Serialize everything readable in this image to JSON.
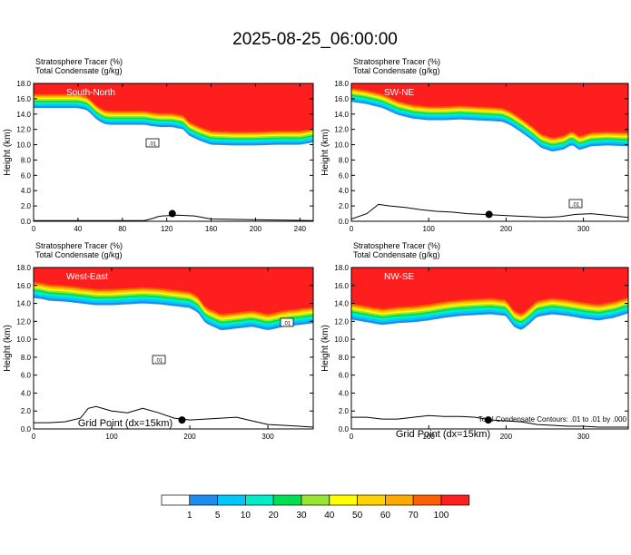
{
  "title": "2025-08-25_06:00:00",
  "panel_labels": [
    "Stratosphere Tracer   (%)",
    "Total Condensate   (g/kg)"
  ],
  "xlabel": "Grid Point (dx=15km)",
  "ylabel": "Height (km)",
  "footnote": "Total Condensate Contours: .01 to .01 by .000",
  "contour_label": ".01",
  "colors": {
    "levels": [
      {
        "label": "",
        "color": "#ffffff"
      },
      {
        "label": "1",
        "color": "#1e8cf0"
      },
      {
        "label": "5",
        "color": "#00c8ff"
      },
      {
        "label": "10",
        "color": "#00eec8"
      },
      {
        "label": "20",
        "color": "#00e050"
      },
      {
        "label": "30",
        "color": "#96e632"
      },
      {
        "label": "40",
        "color": "#ffff00"
      },
      {
        "label": "50",
        "color": "#ffd200"
      },
      {
        "label": "60",
        "color": "#ffaa00"
      },
      {
        "label": "70",
        "color": "#ff5f00"
      },
      {
        "label": "100",
        "color": "#ff1e1e"
      }
    ]
  },
  "chart_data": [
    {
      "type": "heatmap",
      "name": "South-North",
      "xlim": [
        0,
        252
      ],
      "ylim": [
        0,
        18
      ],
      "xticks": [
        0,
        40,
        80,
        120,
        160,
        200,
        240
      ],
      "yticks": [
        0,
        2,
        4,
        6,
        8,
        10,
        12,
        14,
        16,
        18
      ],
      "tropopause_x": [
        0,
        20,
        40,
        48,
        52,
        56,
        60,
        64,
        70,
        80,
        90,
        100,
        108,
        115,
        125,
        135,
        140,
        150,
        160,
        180,
        200,
        220,
        240,
        252
      ],
      "tropopause_y": [
        14.8,
        14.8,
        14.8,
        14.5,
        14.0,
        13.4,
        13.0,
        12.7,
        12.6,
        12.6,
        12.6,
        12.6,
        12.4,
        12.3,
        12.3,
        12.0,
        11.2,
        10.5,
        10.0,
        9.9,
        9.9,
        10.0,
        10.0,
        10.3
      ],
      "terrain_x": [
        0,
        100,
        108,
        112,
        116,
        130,
        145,
        160,
        252
      ],
      "terrain_y": [
        0.1,
        0.1,
        0.4,
        0.6,
        0.7,
        0.8,
        0.7,
        0.3,
        0.1
      ],
      "marker": [
        125,
        1.0
      ]
    },
    {
      "type": "heatmap",
      "name": "SW-NE",
      "xlim": [
        0,
        358
      ],
      "ylim": [
        0,
        18
      ],
      "xticks": [
        0,
        100,
        200,
        300
      ],
      "yticks": [
        0,
        2,
        4,
        6,
        8,
        10,
        12,
        14,
        16,
        18
      ],
      "tropopause_x": [
        0,
        20,
        40,
        60,
        80,
        100,
        120,
        140,
        160,
        180,
        195,
        205,
        220,
        235,
        245,
        260,
        275,
        285,
        295,
        310,
        330,
        358
      ],
      "tropopause_y": [
        15.6,
        15.3,
        14.8,
        13.9,
        13.4,
        13.2,
        13.2,
        13.3,
        13.2,
        13.1,
        13.0,
        12.6,
        11.6,
        10.5,
        9.6,
        9.1,
        9.4,
        10.0,
        9.3,
        9.8,
        9.9,
        9.8
      ],
      "terrain_x": [
        0,
        20,
        35,
        50,
        70,
        90,
        110,
        130,
        150,
        170,
        190,
        210,
        230,
        250,
        270,
        290,
        310,
        330,
        358
      ],
      "terrain_y": [
        0.3,
        1.0,
        2.2,
        2.0,
        1.8,
        1.5,
        1.3,
        1.2,
        1.0,
        0.9,
        0.8,
        0.7,
        0.6,
        0.5,
        0.6,
        0.9,
        1.0,
        0.8,
        0.5
      ],
      "marker": [
        178,
        0.9
      ]
    },
    {
      "type": "heatmap",
      "name": "West-East",
      "xlim": [
        0,
        358
      ],
      "ylim": [
        0,
        18
      ],
      "xticks": [
        0,
        100,
        200,
        300
      ],
      "yticks": [
        0,
        2,
        4,
        6,
        8,
        10,
        12,
        14,
        16,
        18
      ],
      "tropopause_x": [
        0,
        10,
        20,
        40,
        60,
        80,
        100,
        120,
        140,
        160,
        180,
        200,
        210,
        220,
        240,
        260,
        280,
        300,
        320,
        340,
        358
      ],
      "tropopause_y": [
        14.6,
        14.5,
        14.3,
        14.2,
        14.0,
        13.8,
        13.8,
        13.9,
        14.0,
        13.9,
        13.7,
        13.5,
        13.0,
        11.8,
        11.0,
        11.2,
        11.4,
        11.0,
        11.4,
        11.6,
        11.8
      ],
      "terrain_x": [
        0,
        20,
        40,
        60,
        70,
        80,
        100,
        120,
        140,
        160,
        180,
        200,
        220,
        240,
        260,
        280,
        300,
        320,
        340,
        358
      ],
      "terrain_y": [
        0.7,
        0.7,
        0.8,
        1.2,
        2.3,
        2.5,
        2.0,
        1.8,
        2.3,
        1.8,
        1.2,
        1.0,
        1.1,
        1.2,
        1.3,
        0.9,
        0.5,
        0.4,
        0.3,
        0.2
      ],
      "marker": [
        190,
        1.0
      ]
    },
    {
      "type": "heatmap",
      "name": "NW-SE",
      "xlim": [
        0,
        358
      ],
      "ylim": [
        0,
        18
      ],
      "xticks": [
        0,
        100,
        200,
        300
      ],
      "yticks": [
        0,
        2,
        4,
        6,
        8,
        10,
        12,
        14,
        16,
        18
      ],
      "tropopause_x": [
        0,
        20,
        40,
        60,
        80,
        100,
        120,
        140,
        160,
        180,
        200,
        210,
        220,
        230,
        240,
        260,
        280,
        300,
        320,
        340,
        358
      ],
      "tropopause_y": [
        12.2,
        11.9,
        11.6,
        11.8,
        11.9,
        12.1,
        12.4,
        12.6,
        12.7,
        12.8,
        12.6,
        11.4,
        11.0,
        11.7,
        12.5,
        12.8,
        12.6,
        12.3,
        12.1,
        12.4,
        12.9
      ],
      "terrain_x": [
        0,
        20,
        40,
        60,
        80,
        100,
        120,
        140,
        160,
        180,
        200,
        220,
        240,
        260,
        280,
        300,
        320,
        340,
        358
      ],
      "terrain_y": [
        1.3,
        1.3,
        1.1,
        1.1,
        1.3,
        1.5,
        1.4,
        1.4,
        1.3,
        1.0,
        0.9,
        0.8,
        0.5,
        0.4,
        0.3,
        0.3,
        0.2,
        0.2,
        0.2
      ],
      "marker": [
        177,
        1.0
      ]
    }
  ]
}
